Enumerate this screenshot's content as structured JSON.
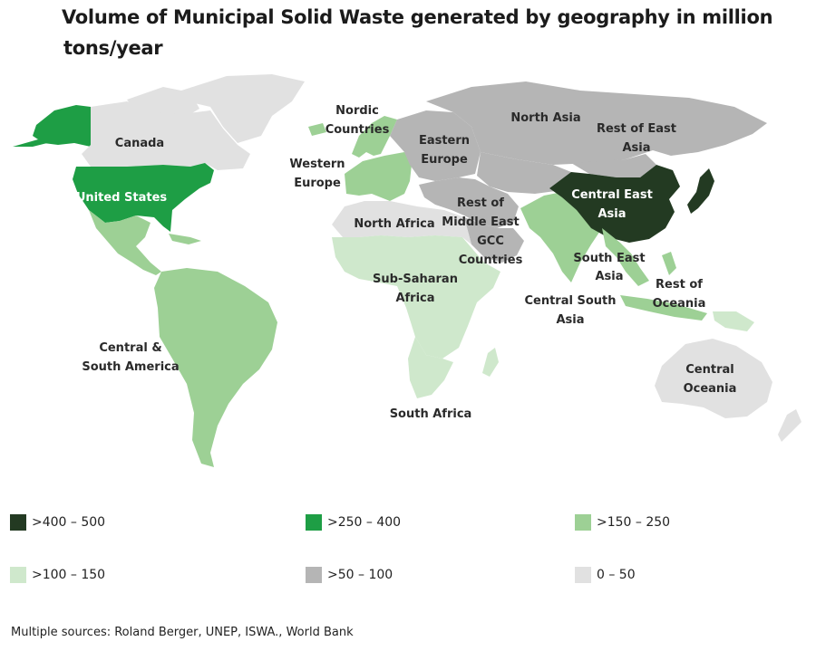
{
  "title": {
    "line1": "Volume of Municipal Solid Waste generated by geography in million",
    "line2": "tons/year"
  },
  "colors": {
    "c400_500": "#233a22",
    "c250_400": "#1e9e45",
    "c150_250": "#9dd095",
    "c100_150": "#cfe8cc",
    "c50_100": "#b5b5b5",
    "c0_50": "#e1e1e1"
  },
  "regions": {
    "canada": "Canada",
    "united_states": "United States",
    "central_south_america": [
      "Central &",
      "South America"
    ],
    "nordic": [
      "Nordic",
      "Countries"
    ],
    "western_europe": [
      "Western",
      "Europe"
    ],
    "eastern_europe": [
      "Eastern",
      "Europe"
    ],
    "north_asia": "North Asia",
    "rest_east_asia": [
      "Rest of East",
      "Asia"
    ],
    "north_africa": "North Africa",
    "rest_middle_east": [
      "Rest of",
      "Middle East"
    ],
    "gcc": [
      "GCC",
      "Countries"
    ],
    "central_east_asia": [
      "Central East",
      "Asia"
    ],
    "south_east_asia": [
      "South East",
      "Asia"
    ],
    "rest_oceania": [
      "Rest of",
      "Oceania"
    ],
    "sub_saharan": [
      "Sub-Saharan",
      "Africa"
    ],
    "central_south_asia": [
      "Central South",
      "Asia"
    ],
    "south_africa": "South Africa",
    "central_oceania": [
      "Central",
      "Oceania"
    ]
  },
  "legend": [
    {
      "label": ">400 – 500",
      "color": "#233a22"
    },
    {
      "label": ">250 – 400",
      "color": "#1e9e45"
    },
    {
      "label": ">150 – 250",
      "color": "#9dd095"
    },
    {
      "label": ">100 – 150",
      "color": "#cfe8cc"
    },
    {
      "label": ">50 – 100",
      "color": "#b5b5b5"
    },
    {
      "label": "0 – 50",
      "color": "#e1e1e1"
    }
  ],
  "source": "Multiple sources: Roland Berger, UNEP, ISWA., World Bank"
}
